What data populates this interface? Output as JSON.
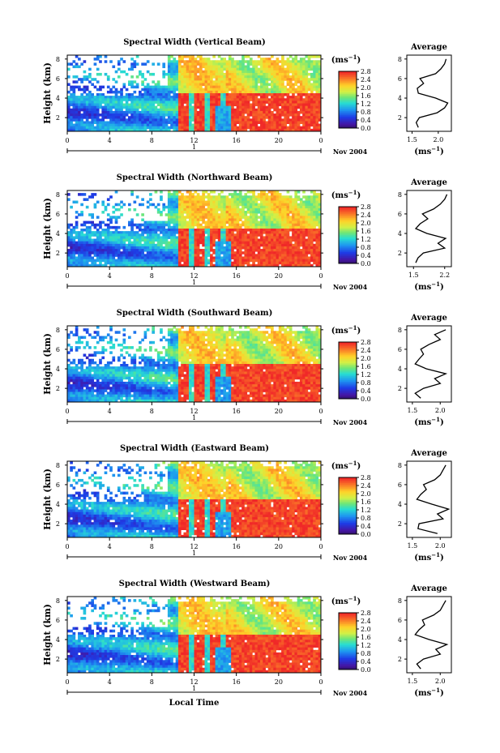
{
  "chart_data": [
    {
      "type": "heatmap",
      "title": "Spectral Width (Vertical Beam)",
      "ylabel": "Height (km)",
      "xticks": [
        "0",
        "4",
        "8",
        "12",
        "16",
        "20",
        "0"
      ],
      "yticks": [
        "2",
        "4",
        "6",
        "8"
      ],
      "date_label": "1",
      "month_label": "Nov 2004",
      "colorbar_unit": "(ms",
      "colorbar_ticks": [
        "0.0",
        "0.4",
        "0.8",
        "1.2",
        "1.6",
        "2.0",
        "2.4",
        "2.8"
      ],
      "profile": {
        "title": "Average",
        "xlabel": "(ms",
        "xticks": [
          "1.5",
          "2.0"
        ],
        "xlim": [
          1.4,
          2.25
        ],
        "yticks": [
          "2",
          "4",
          "6",
          "8"
        ],
        "height_km": [
          1,
          1.5,
          2,
          2.5,
          3,
          3.5,
          4,
          4.5,
          5,
          5.5,
          6,
          6.5,
          7,
          7.5,
          8
        ],
        "values": [
          1.62,
          1.58,
          1.64,
          1.98,
          2.12,
          2.18,
          1.95,
          1.62,
          1.6,
          1.72,
          1.65,
          1.95,
          2.05,
          2.12,
          2.15
        ]
      }
    },
    {
      "type": "heatmap",
      "title": "Spectral Width (Northward Beam)",
      "ylabel": "Height (km)",
      "xticks": [
        "0",
        "4",
        "8",
        "12",
        "16",
        "20",
        "0"
      ],
      "yticks": [
        "2",
        "4",
        "6",
        "8"
      ],
      "date_label": "1",
      "month_label": "Nov 2004",
      "colorbar_unit": "(ms",
      "colorbar_ticks": [
        "0.0",
        "0.4",
        "0.8",
        "1.2",
        "1.6",
        "2.0",
        "2.4",
        "2.8"
      ],
      "profile": {
        "title": "Average",
        "xlabel": "(ms",
        "xticks": [
          "1.5",
          "2.2"
        ],
        "xlim": [
          1.35,
          2.35
        ],
        "yticks": [
          "2",
          "4",
          "6",
          "8"
        ],
        "height_km": [
          1,
          1.5,
          2,
          2.5,
          3,
          3.5,
          4,
          4.5,
          5,
          5.5,
          6,
          6.5,
          7,
          7.5,
          8
        ],
        "values": [
          1.55,
          1.6,
          1.72,
          2.2,
          2.05,
          2.22,
          1.8,
          1.55,
          1.65,
          1.82,
          1.7,
          1.95,
          2.1,
          2.2,
          2.25
        ]
      }
    },
    {
      "type": "heatmap",
      "title": "Spectral Width (Southward Beam)",
      "ylabel": "Height (km)",
      "xticks": [
        "0",
        "4",
        "8",
        "12",
        "16",
        "20",
        "0"
      ],
      "yticks": [
        "2",
        "4",
        "6",
        "8"
      ],
      "date_label": "1",
      "month_label": "Nov 2004",
      "colorbar_unit": "(ms",
      "colorbar_ticks": [
        "0.0",
        "0.4",
        "0.8",
        "1.2",
        "1.6",
        "2.0",
        "2.4",
        "2.8"
      ],
      "profile": {
        "title": "Average",
        "xlabel": "(ms",
        "xticks": [
          "1.5",
          "2.0"
        ],
        "xlim": [
          1.4,
          2.2
        ],
        "yticks": [
          "2",
          "4",
          "6",
          "8"
        ],
        "height_km": [
          1,
          1.5,
          2,
          2.5,
          3,
          3.5,
          4,
          4.5,
          5,
          5.5,
          6,
          6.5,
          7,
          7.5,
          8
        ],
        "values": [
          1.65,
          1.55,
          1.7,
          2.0,
          1.9,
          2.1,
          1.75,
          1.55,
          1.62,
          1.7,
          1.65,
          1.8,
          2.0,
          1.9,
          2.1
        ]
      }
    },
    {
      "type": "heatmap",
      "title": "Spectral Width (Eastward Beam)",
      "ylabel": "Height (km)",
      "xticks": [
        "0",
        "4",
        "8",
        "12",
        "16",
        "20",
        "0"
      ],
      "yticks": [
        "2",
        "4",
        "6",
        "8"
      ],
      "date_label": "1",
      "month_label": "Nov 2004",
      "colorbar_unit": "(ms",
      "colorbar_ticks": [
        "0.0",
        "0.4",
        "0.8",
        "1.2",
        "1.6",
        "2.0",
        "2.4",
        "2.8"
      ],
      "profile": {
        "title": "Average",
        "xlabel": "(ms",
        "xticks": [
          "1.5",
          "2.0"
        ],
        "xlim": [
          1.4,
          2.2
        ],
        "yticks": [
          "2",
          "4",
          "6",
          "8"
        ],
        "height_km": [
          1,
          1.5,
          2,
          2.5,
          3,
          3.5,
          4,
          4.5,
          5,
          5.5,
          6,
          6.5,
          7,
          7.5,
          8
        ],
        "values": [
          1.95,
          1.6,
          1.62,
          2.05,
          1.95,
          2.15,
          1.85,
          1.58,
          1.65,
          1.75,
          1.7,
          1.9,
          2.0,
          2.05,
          2.1
        ]
      }
    },
    {
      "type": "heatmap",
      "title": "Spectral Width (Westward Beam)",
      "ylabel": "Height (km)",
      "xlabel": "Local Time",
      "xticks": [
        "0",
        "4",
        "8",
        "12",
        "16",
        "20",
        "0"
      ],
      "yticks": [
        "2",
        "4",
        "6",
        "8"
      ],
      "date_label": "1",
      "month_label": "Nov 2004",
      "colorbar_unit": "(ms",
      "colorbar_ticks": [
        "0.0",
        "0.4",
        "0.8",
        "1.2",
        "1.6",
        "2.0",
        "2.4",
        "2.8"
      ],
      "profile": {
        "title": "Average",
        "xlabel": "(ms",
        "xticks": [
          "1.5",
          "2.0"
        ],
        "xlim": [
          1.4,
          2.2
        ],
        "yticks": [
          "2",
          "4",
          "6",
          "8"
        ],
        "height_km": [
          1,
          1.5,
          2,
          2.5,
          3,
          3.5,
          4,
          4.5,
          5,
          5.5,
          6,
          6.5,
          7,
          7.5,
          8
        ],
        "values": [
          1.65,
          1.58,
          1.7,
          2.0,
          1.92,
          2.12,
          1.8,
          1.55,
          1.62,
          1.72,
          1.68,
          1.88,
          2.0,
          2.05,
          2.1
        ]
      }
    }
  ]
}
